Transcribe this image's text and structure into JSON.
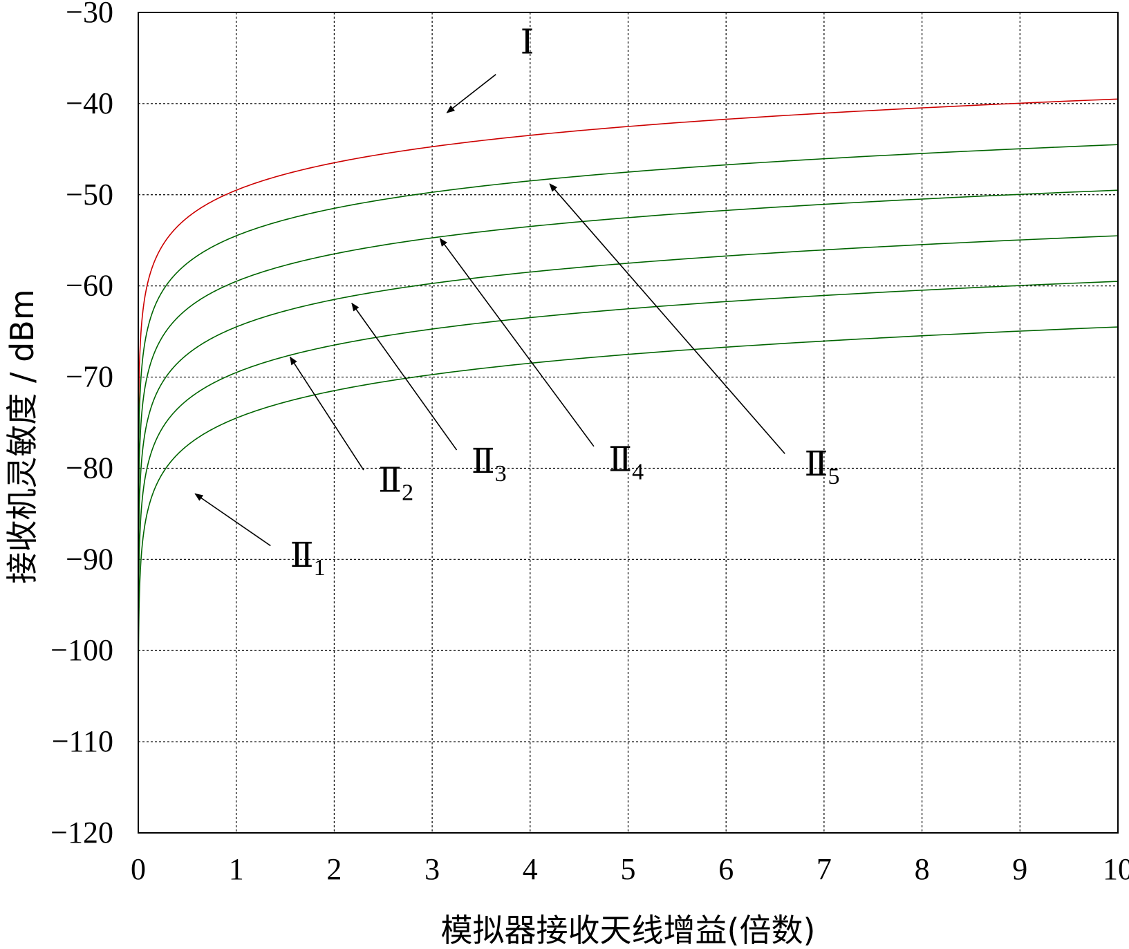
{
  "chart_data": {
    "type": "line",
    "title": "",
    "xlabel": "模拟器接收天线增益(倍数)",
    "ylabel": "接收机灵敏度 / dBm",
    "xlim": [
      0,
      10
    ],
    "ylim": [
      -120,
      -30
    ],
    "xticks": [
      "0",
      "1",
      "2",
      "3",
      "4",
      "5",
      "6",
      "7",
      "8",
      "9",
      "10"
    ],
    "yticks": [
      "−30",
      "−40",
      "−50",
      "−60",
      "−70",
      "−80",
      "−90",
      "−100",
      "−110",
      "−120"
    ],
    "grid": true,
    "legend": "none",
    "series_model": "y = offset + 10*log10(x)",
    "series": [
      {
        "label": "Ⅰ",
        "color": "#cc0000",
        "offset": -49.5,
        "x": [
          0.01,
          0.05,
          0.1,
          0.5,
          1,
          2,
          3,
          4,
          5,
          6,
          7,
          8,
          9,
          10
        ],
        "values": [
          -69.5,
          -62.5,
          -59.5,
          -52.5,
          -49.5,
          -46.5,
          -44.7,
          -43.5,
          -42.5,
          -41.7,
          -41.0,
          -40.5,
          -40.0,
          -39.5
        ]
      },
      {
        "label": "Ⅱ5",
        "color": "#006400",
        "offset": -54.5,
        "x": [
          0.01,
          0.05,
          0.1,
          0.5,
          1,
          2,
          3,
          4,
          5,
          6,
          7,
          8,
          9,
          10
        ],
        "values": [
          -74.5,
          -67.5,
          -64.5,
          -57.5,
          -54.5,
          -51.5,
          -49.7,
          -48.5,
          -47.5,
          -46.7,
          -46.0,
          -45.5,
          -45.0,
          -44.5
        ]
      },
      {
        "label": "Ⅱ4",
        "color": "#006400",
        "offset": -59.5,
        "x": [
          0.01,
          0.05,
          0.1,
          0.5,
          1,
          2,
          3,
          4,
          5,
          6,
          7,
          8,
          9,
          10
        ],
        "values": [
          -79.5,
          -72.5,
          -69.5,
          -62.5,
          -59.5,
          -56.5,
          -54.7,
          -53.5,
          -52.5,
          -51.7,
          -51.0,
          -50.5,
          -50.0,
          -49.5
        ]
      },
      {
        "label": "Ⅱ3",
        "color": "#006400",
        "offset": -64.5,
        "x": [
          0.01,
          0.05,
          0.1,
          0.5,
          1,
          2,
          3,
          4,
          5,
          6,
          7,
          8,
          9,
          10
        ],
        "values": [
          -84.5,
          -77.5,
          -74.5,
          -67.5,
          -64.5,
          -61.5,
          -59.7,
          -58.5,
          -57.5,
          -56.7,
          -56.0,
          -55.5,
          -55.0,
          -54.5
        ]
      },
      {
        "label": "Ⅱ2",
        "color": "#006400",
        "offset": -69.5,
        "x": [
          0.01,
          0.05,
          0.1,
          0.5,
          1,
          2,
          3,
          4,
          5,
          6,
          7,
          8,
          9,
          10
        ],
        "values": [
          -89.5,
          -82.5,
          -79.5,
          -72.5,
          -69.5,
          -66.5,
          -64.7,
          -63.5,
          -62.5,
          -61.7,
          -61.0,
          -60.5,
          -60.0,
          -59.5
        ]
      },
      {
        "label": "Ⅱ1",
        "color": "#006400",
        "offset": -74.5,
        "x": [
          0.01,
          0.05,
          0.1,
          0.5,
          1,
          2,
          3,
          4,
          5,
          6,
          7,
          8,
          9,
          10
        ],
        "values": [
          -94.5,
          -87.5,
          -84.5,
          -77.5,
          -74.5,
          -71.5,
          -69.7,
          -68.5,
          -67.5,
          -66.7,
          -66.0,
          -65.5,
          -65.0,
          -64.5
        ]
      }
    ],
    "annotations": [
      {
        "name": "annotation-I",
        "main": "Ⅰ",
        "sub": "",
        "text_at": [
          3.9,
          -34.5
        ],
        "arrow_from": [
          3.65,
          -36.8
        ],
        "arrow_to": [
          3.15,
          -41.0
        ]
      },
      {
        "name": "annotation-II5",
        "main": "Ⅱ",
        "sub": "5",
        "text_at": [
          6.8,
          -80.8
        ],
        "arrow_from": [
          6.6,
          -78.4
        ],
        "arrow_to": [
          4.2,
          -48.8
        ]
      },
      {
        "name": "annotation-II4",
        "main": "Ⅱ",
        "sub": "4",
        "text_at": [
          4.8,
          -80.3
        ],
        "arrow_from": [
          4.65,
          -77.6
        ],
        "arrow_to": [
          3.08,
          -54.8
        ]
      },
      {
        "name": "annotation-II3",
        "main": "Ⅱ",
        "sub": "3",
        "text_at": [
          3.4,
          -80.5
        ],
        "arrow_from": [
          3.25,
          -78.0
        ],
        "arrow_to": [
          2.18,
          -61.9
        ]
      },
      {
        "name": "annotation-II2",
        "main": "Ⅱ",
        "sub": "2",
        "text_at": [
          2.45,
          -82.6
        ],
        "arrow_from": [
          2.3,
          -80.2
        ],
        "arrow_to": [
          1.55,
          -67.8
        ]
      },
      {
        "name": "annotation-II1",
        "main": "Ⅱ",
        "sub": "1",
        "text_at": [
          1.55,
          -90.8
        ],
        "arrow_from": [
          1.35,
          -88.5
        ],
        "arrow_to": [
          0.58,
          -82.8
        ]
      }
    ]
  }
}
